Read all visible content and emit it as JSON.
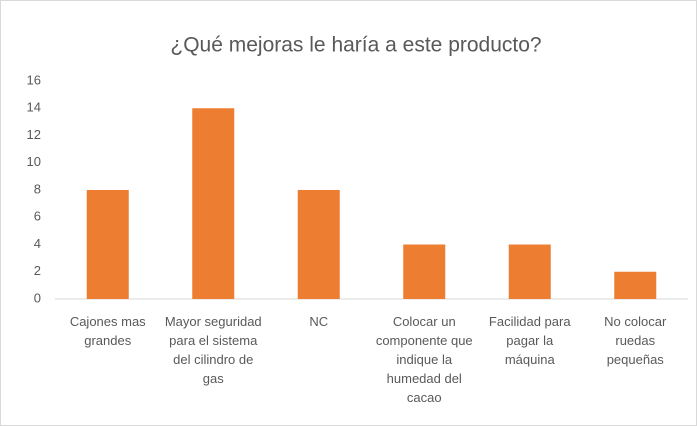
{
  "chart_data": {
    "type": "bar",
    "title": "¿Qué mejoras le haría a este producto?",
    "categories": [
      "Cajones mas grandes",
      "Mayor seguridad para el sistema del cilindro de gas",
      "NC",
      "Colocar un componente que indique la humedad del cacao",
      "Facilidad para pagar la máquina",
      "No colocar ruedas pequeñas"
    ],
    "values": [
      8,
      14,
      8,
      4,
      4,
      2
    ],
    "color": "#ed7d31",
    "ylim": [
      0,
      16
    ],
    "yticks": [
      0,
      2,
      4,
      6,
      8,
      10,
      12,
      14,
      16
    ],
    "grid": false
  }
}
